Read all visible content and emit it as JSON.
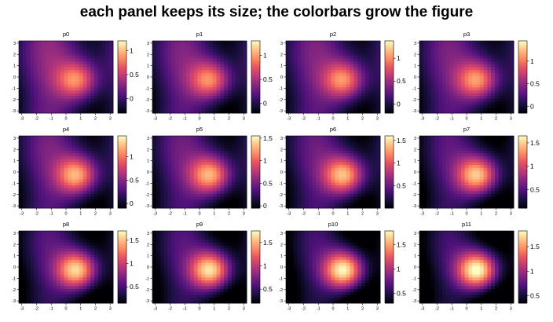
{
  "title": "each panel keeps its size; the colorbars grow the figure",
  "colormap": "magma",
  "chart_data": {
    "type": "heatmap",
    "grid": "off",
    "layout": "3 rows x 4 columns of panels, each with its own vertical colorbar on the right",
    "shared_axes": {
      "xlim": [
        -3.2,
        3.2
      ],
      "ylim": [
        -3.2,
        3.2
      ],
      "xticks": [
        -3,
        -2,
        -1,
        0,
        1,
        2,
        3
      ],
      "yticks": [
        -3,
        -2,
        -1,
        0,
        1,
        2,
        3
      ],
      "resolution": 25
    },
    "field": {
      "description_of_values_drawn": "bright gaussian bump centered near (0.8, -0.3) over a sinusoidal background, peak grows panel to panel",
      "bump_center": [
        0.8,
        -0.3
      ],
      "bump_sigma_x": 1.0,
      "bump_sigma_y": 1.25
    },
    "panels": [
      {
        "title": "p0",
        "vmin": -0.3,
        "vmax": 1.2,
        "colorbar_ticks": [
          0,
          0.5,
          1
        ]
      },
      {
        "title": "p1",
        "vmin": -0.2,
        "vmax": 1.3,
        "colorbar_ticks": [
          0,
          0.5,
          1
        ]
      },
      {
        "title": "p2",
        "vmin": -0.2,
        "vmax": 1.38,
        "colorbar_ticks": [
          0,
          0.5,
          1
        ]
      },
      {
        "title": "p3",
        "vmin": -0.15,
        "vmax": 1.45,
        "colorbar_ticks": [
          0,
          0.5,
          1
        ]
      },
      {
        "title": "p4",
        "vmin": -0.1,
        "vmax": 1.45,
        "colorbar_ticks": [
          0,
          0.5,
          1
        ]
      },
      {
        "title": "p5",
        "vmin": -0.05,
        "vmax": 1.55,
        "colorbar_ticks": [
          0,
          0.5,
          1,
          1.5
        ]
      },
      {
        "title": "p6",
        "vmin": 0.0,
        "vmax": 1.6,
        "colorbar_ticks": [
          0.5,
          1,
          1.5
        ]
      },
      {
        "title": "p7",
        "vmin": 0.1,
        "vmax": 1.65,
        "colorbar_ticks": [
          0.5,
          1,
          1.5
        ]
      },
      {
        "title": "p8",
        "vmin": 0.15,
        "vmax": 1.7,
        "colorbar_ticks": [
          0.5,
          1,
          1.5
        ]
      },
      {
        "title": "p9",
        "vmin": 0.2,
        "vmax": 1.75,
        "colorbar_ticks": [
          0.5,
          1,
          1.5
        ]
      },
      {
        "title": "p10",
        "vmin": 0.3,
        "vmax": 1.78,
        "colorbar_ticks": [
          0.5,
          1,
          1.5
        ]
      },
      {
        "title": "p11",
        "vmin": 0.35,
        "vmax": 1.82,
        "colorbar_ticks": [
          0.5,
          1,
          1.5
        ]
      }
    ]
  }
}
